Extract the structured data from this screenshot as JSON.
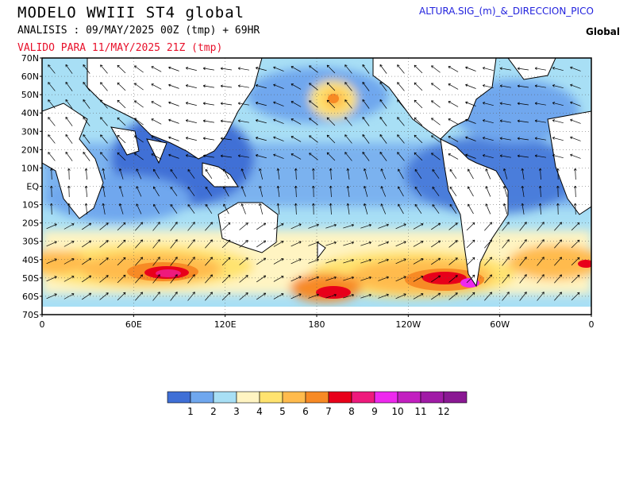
{
  "header": {
    "title": "MODELO WWIII ST4 global",
    "analisis": "ANALISIS : 09/MAY/2025 00Z  (tmp) + 69HR",
    "valido": "VALIDO PARA  11/MAY/2025 21Z  (tmp)",
    "product": "ALTURA.SIG_(m)_&_DIRECCION_PICO",
    "region": "Global"
  },
  "map": {
    "lat_labels": [
      "70N",
      "60N",
      "50N",
      "40N",
      "30N",
      "20N",
      "10N",
      "EQ",
      "10S",
      "20S",
      "30S",
      "40S",
      "50S",
      "60S",
      "70S"
    ],
    "lon_labels": [
      "0",
      "60E",
      "120E",
      "180",
      "120W",
      "60W",
      "0"
    ]
  },
  "legend": {
    "colors": [
      "#3f6fd6",
      "#6fa7ee",
      "#a8dff5",
      "#fff4c2",
      "#ffe36f",
      "#ffbb4d",
      "#f78a25",
      "#e8001a",
      "#ee1a7c",
      "#ee28ee",
      "#c21fc0",
      "#a01ba6",
      "#8a1893"
    ],
    "labels": [
      "1",
      "2",
      "3",
      "4",
      "5",
      "6",
      "7",
      "8",
      "9",
      "10",
      "11",
      "12"
    ]
  }
}
